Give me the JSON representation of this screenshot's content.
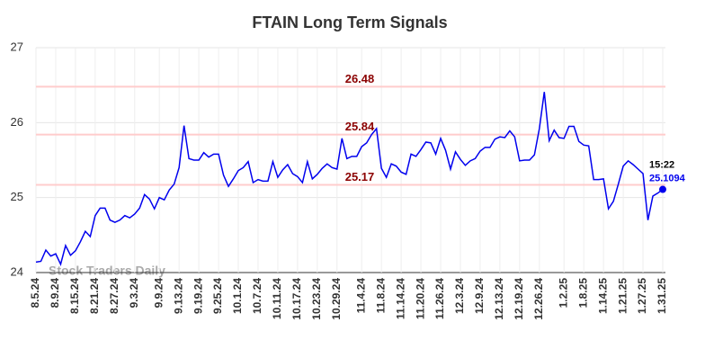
{
  "chart_data": {
    "type": "line",
    "title": "FTAIN Long Term Signals",
    "watermark": "Stock Traders Daily",
    "categories": [
      "8.5.24",
      null,
      null,
      null,
      "8.9.24",
      null,
      null,
      null,
      "8.15.24",
      null,
      null,
      null,
      "8.21.24",
      null,
      null,
      null,
      "8.27.24",
      null,
      null,
      null,
      "9.3.24",
      null,
      null,
      null,
      null,
      "9.9.24",
      null,
      null,
      null,
      "9.13.24",
      null,
      null,
      null,
      "9.19.24",
      null,
      null,
      null,
      "9.25.24",
      null,
      null,
      null,
      "10.1.24",
      null,
      null,
      null,
      "10.7.24",
      null,
      null,
      null,
      "10.11.24",
      null,
      null,
      null,
      "10.17.24",
      null,
      null,
      null,
      "10.23.24",
      null,
      null,
      null,
      "10.29.24",
      null,
      null,
      null,
      null,
      "11.4.24",
      null,
      null,
      null,
      "11.8.24",
      null,
      null,
      null,
      "11.14.24",
      null,
      null,
      null,
      "11.20.24",
      null,
      null,
      null,
      "11.26.24",
      null,
      null,
      null,
      "12.3.24",
      null,
      null,
      null,
      "12.9.24",
      null,
      null,
      null,
      "12.13.24",
      null,
      null,
      null,
      "12.19.24",
      null,
      null,
      null,
      "12.26.24",
      null,
      null,
      null,
      null,
      "1.2.25",
      null,
      null,
      null,
      "1.8.25",
      null,
      null,
      null,
      "1.14.25",
      null,
      null,
      null,
      "1.21.25",
      null,
      null,
      null,
      "1.27.25",
      null,
      null,
      null,
      "1.31.25"
    ],
    "series": [
      {
        "color": "#0000ee",
        "values": [
          24.14,
          24.15,
          24.3,
          24.22,
          24.25,
          24.11,
          24.36,
          24.23,
          24.29,
          24.41,
          24.55,
          24.48,
          24.76,
          24.86,
          24.86,
          24.7,
          24.67,
          24.7,
          24.76,
          24.73,
          24.78,
          24.86,
          25.04,
          24.98,
          24.85,
          25.0,
          24.97,
          25.1,
          25.18,
          25.4,
          25.96,
          25.52,
          25.5,
          25.5,
          25.6,
          25.54,
          25.58,
          25.58,
          25.3,
          25.15,
          25.25,
          25.36,
          25.4,
          25.48,
          25.2,
          25.24,
          25.22,
          25.22,
          25.48,
          25.27,
          25.37,
          25.44,
          25.32,
          25.28,
          25.2,
          25.48,
          25.25,
          25.31,
          25.39,
          25.45,
          25.4,
          25.38,
          25.79,
          25.52,
          25.55,
          25.55,
          25.68,
          25.73,
          25.84,
          25.92,
          25.39,
          25.27,
          25.45,
          25.42,
          25.34,
          25.31,
          25.58,
          25.55,
          25.64,
          25.74,
          25.73,
          25.58,
          25.79,
          25.63,
          25.38,
          25.61,
          25.51,
          25.43,
          25.49,
          25.52,
          25.62,
          25.67,
          25.67,
          25.78,
          25.81,
          25.8,
          25.89,
          25.81,
          25.49,
          25.5,
          25.5,
          25.57,
          25.92,
          26.41,
          25.76,
          25.9,
          25.8,
          25.79,
          25.95,
          25.95,
          25.75,
          25.7,
          25.69,
          25.24,
          25.24,
          25.25,
          24.85,
          24.95,
          25.18,
          25.42,
          25.49,
          25.44,
          25.38,
          25.32,
          24.7,
          25.02,
          25.06,
          25.1094
        ]
      }
    ],
    "last_time": "15:22",
    "hlines": [
      26.48,
      25.84,
      25.17
    ],
    "hline_color": "#ffcccc",
    "hline_label_color": "#8b0000",
    "ylim": [
      24,
      27
    ],
    "yticks": [
      24,
      25,
      26,
      27
    ],
    "grid": true
  }
}
